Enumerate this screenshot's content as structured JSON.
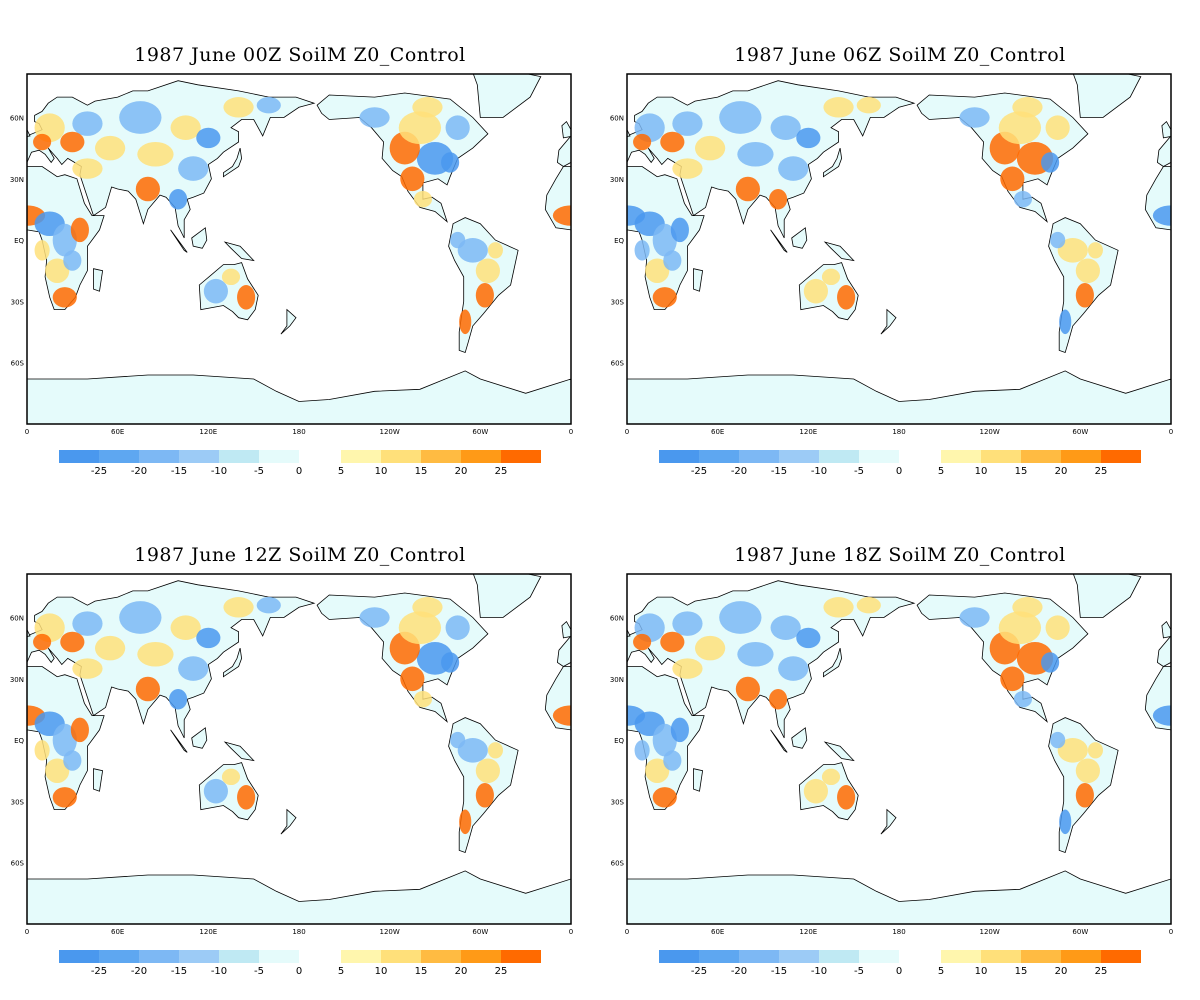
{
  "panels": [
    {
      "title": "1987 June  00Z SoilM Z0_Control"
    },
    {
      "title": "1987  June 06Z SoilM Z0_Control"
    },
    {
      "title": "1987  June 12Z SoilM Z0_Control"
    },
    {
      "title": "1987  June 18Z SoilM Z0_Control"
    }
  ],
  "axes": {
    "lat_labels": [
      "60N",
      "30N",
      "EQ",
      "30S",
      "60S"
    ],
    "lon_labels": [
      "0",
      "60E",
      "120E",
      "180",
      "120W",
      "60W",
      "0"
    ]
  },
  "colorbar": {
    "negative_colors": [
      "#4a98ee",
      "#5ea7f1",
      "#7db8f4",
      "#9ccbf6",
      "#bfe9f3",
      "#e5fbfb"
    ],
    "positive_colors": [
      "#fff6ad",
      "#ffe07a",
      "#ffbb42",
      "#ff9a17",
      "#ff6a00"
    ],
    "negative_labels": [
      "-25",
      "-20",
      "-15",
      "-10",
      "-5",
      "0"
    ],
    "positive_labels": [
      "5",
      "10",
      "15",
      "20",
      "25"
    ]
  }
}
